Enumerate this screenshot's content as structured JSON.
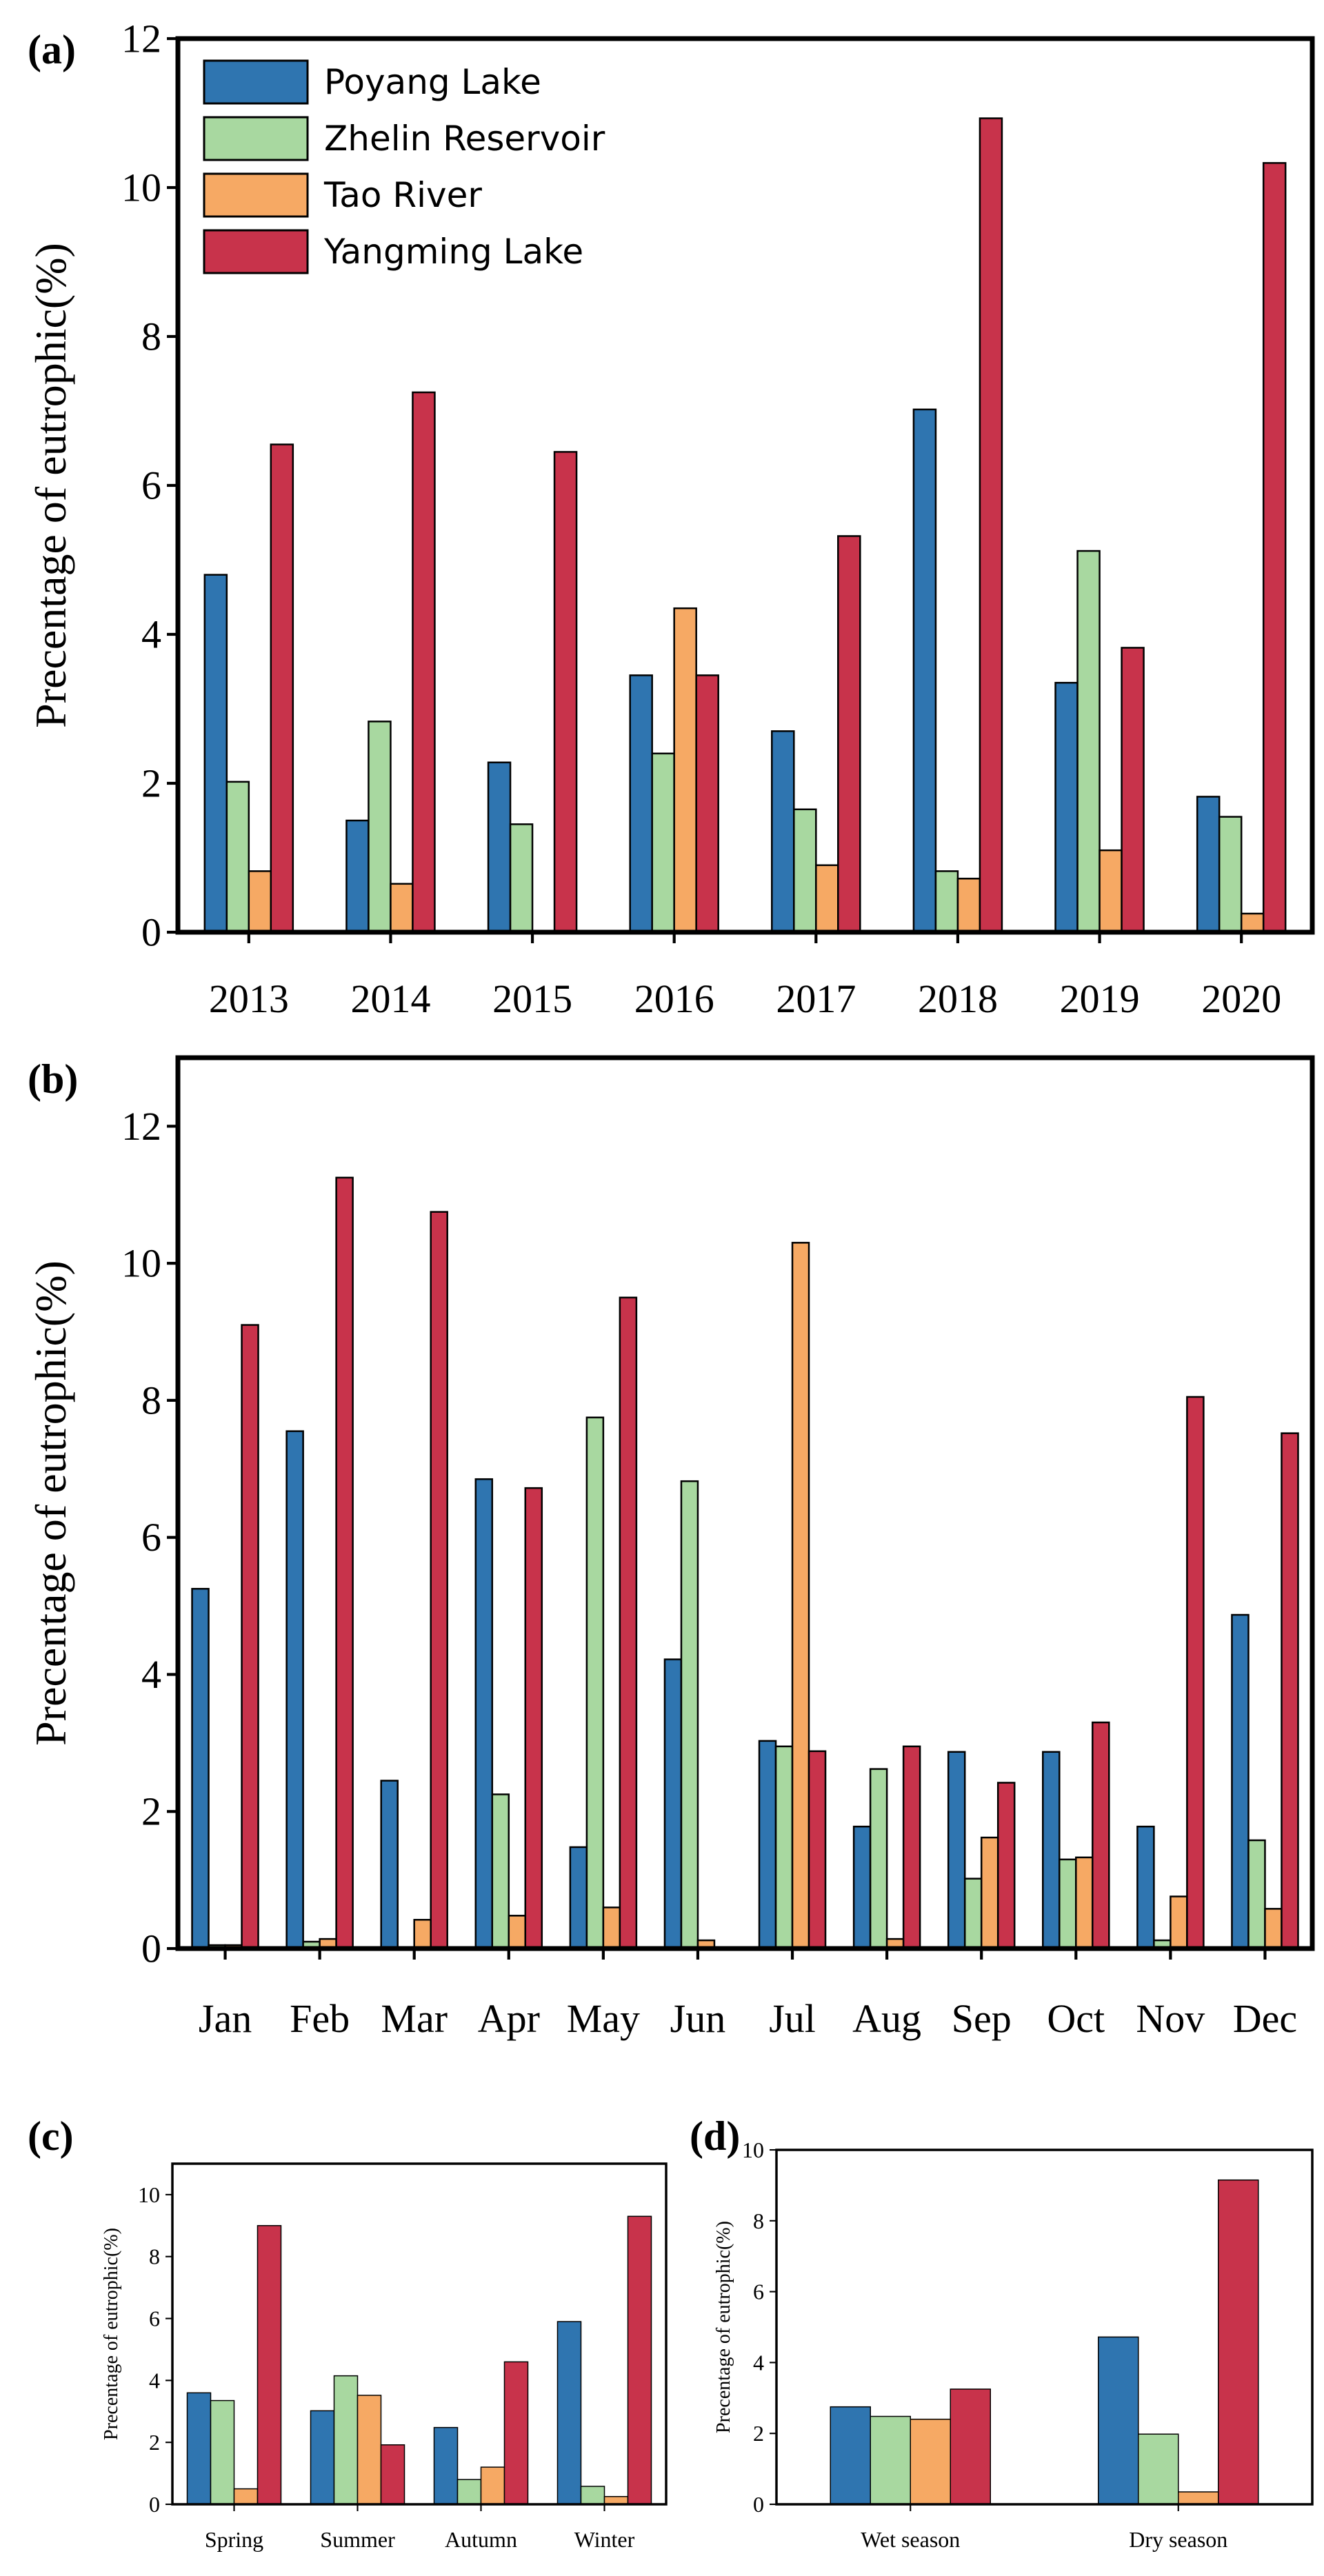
{
  "series_colors": {
    "Poyang Lake": "#2f75b0",
    "Zhelin Reservoir": "#a8d8a0",
    "Tao River": "#f6a964",
    "Yangming Lake": "#c8334b"
  },
  "legend": [
    "Poyang Lake",
    "Zhelin Reservoir",
    "Tao River",
    "Yangming Lake"
  ],
  "chart_data": [
    {
      "id": "a",
      "panel_label": "(a)",
      "type": "bar",
      "title": "",
      "xlabel": "",
      "ylabel": "Precentage of eutrophic(%)",
      "ylim": [
        0,
        12
      ],
      "yticks": [
        0,
        2,
        4,
        6,
        8,
        10,
        12
      ],
      "categories": [
        "2013",
        "2014",
        "2015",
        "2016",
        "2017",
        "2018",
        "2019",
        "2020"
      ],
      "series": [
        {
          "name": "Poyang Lake",
          "values": [
            4.8,
            1.5,
            2.28,
            3.45,
            2.7,
            7.02,
            3.35,
            1.82
          ]
        },
        {
          "name": "Zhelin Reservoir",
          "values": [
            2.02,
            2.83,
            1.45,
            2.4,
            1.65,
            0.82,
            5.12,
            1.55
          ]
        },
        {
          "name": "Tao River",
          "values": [
            0.82,
            0.65,
            0,
            4.35,
            0.9,
            0.72,
            1.1,
            0.25
          ]
        },
        {
          "name": "Yangming Lake",
          "values": [
            6.55,
            7.25,
            6.45,
            3.45,
            5.32,
            10.93,
            3.82,
            10.33
          ]
        }
      ]
    },
    {
      "id": "b",
      "panel_label": "(b)",
      "type": "bar",
      "title": "",
      "xlabel": "",
      "ylabel": "Precentage of eutrophic(%)",
      "ylim": [
        0,
        13
      ],
      "yticks": [
        0,
        2,
        4,
        6,
        8,
        10,
        12
      ],
      "categories": [
        "Jan",
        "Feb",
        "Mar",
        "Apr",
        "May",
        "Jun",
        "Jul",
        "Aug",
        "Sep",
        "Oct",
        "Nov",
        "Dec"
      ],
      "series": [
        {
          "name": "Poyang Lake",
          "values": [
            5.25,
            7.55,
            2.45,
            6.85,
            1.48,
            4.22,
            3.03,
            1.78,
            2.87,
            2.87,
            1.78,
            4.87
          ]
        },
        {
          "name": "Zhelin Reservoir",
          "values": [
            0.05,
            0.1,
            0,
            2.25,
            7.75,
            6.82,
            2.95,
            2.62,
            1.02,
            1.3,
            0.12,
            1.58
          ]
        },
        {
          "name": "Tao River",
          "values": [
            0.05,
            0.14,
            0.42,
            0.48,
            0.6,
            0.12,
            10.3,
            0.14,
            1.62,
            1.33,
            0.76,
            0.58
          ]
        },
        {
          "name": "Yangming Lake",
          "values": [
            9.1,
            11.25,
            10.75,
            6.72,
            9.5,
            0,
            2.88,
            2.95,
            2.42,
            3.3,
            8.05,
            7.52
          ]
        }
      ]
    },
    {
      "id": "c",
      "panel_label": "(c)",
      "type": "bar",
      "title": "",
      "xlabel": "",
      "ylabel": "Precentage of eutrophic(%)",
      "ylim": [
        0,
        11
      ],
      "yticks": [
        0,
        2,
        4,
        6,
        8,
        10
      ],
      "categories": [
        "Spring",
        "Summer",
        "Autumn",
        "Winter"
      ],
      "series": [
        {
          "name": "Poyang Lake",
          "values": [
            3.6,
            3.02,
            2.48,
            5.9
          ]
        },
        {
          "name": "Zhelin Reservoir",
          "values": [
            3.35,
            4.15,
            0.8,
            0.58
          ]
        },
        {
          "name": "Tao River",
          "values": [
            0.5,
            3.52,
            1.2,
            0.25
          ]
        },
        {
          "name": "Yangming Lake",
          "values": [
            9.0,
            1.92,
            4.6,
            9.3
          ]
        }
      ]
    },
    {
      "id": "d",
      "panel_label": "(d)",
      "type": "bar",
      "title": "",
      "xlabel": "",
      "ylabel": "Precentage of eutrophic(%)",
      "ylim": [
        0,
        10
      ],
      "yticks": [
        0,
        2,
        4,
        6,
        8,
        10
      ],
      "categories": [
        "Wet season",
        "Dry season"
      ],
      "series": [
        {
          "name": "Poyang Lake",
          "values": [
            2.75,
            4.72
          ]
        },
        {
          "name": "Zhelin Reservoir",
          "values": [
            2.48,
            1.98
          ]
        },
        {
          "name": "Tao River",
          "values": [
            2.4,
            0.35
          ]
        },
        {
          "name": "Yangming Lake",
          "values": [
            3.25,
            9.15
          ]
        }
      ]
    }
  ]
}
